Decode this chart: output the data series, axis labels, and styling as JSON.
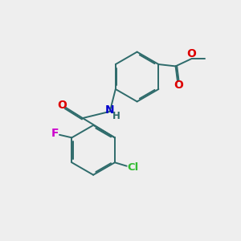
{
  "bg_color": "#eeeeee",
  "bond_color": "#2e6b6b",
  "bond_width": 1.4,
  "dbo": 0.055,
  "atom_colors": {
    "O": "#dd0000",
    "N": "#0000cc",
    "Cl": "#33bb33",
    "F": "#cc00cc",
    "C": "#2e6b6b",
    "H": "#2e6b6b"
  },
  "font_size": 8.5,
  "figsize": [
    3.0,
    3.0
  ],
  "dpi": 100
}
